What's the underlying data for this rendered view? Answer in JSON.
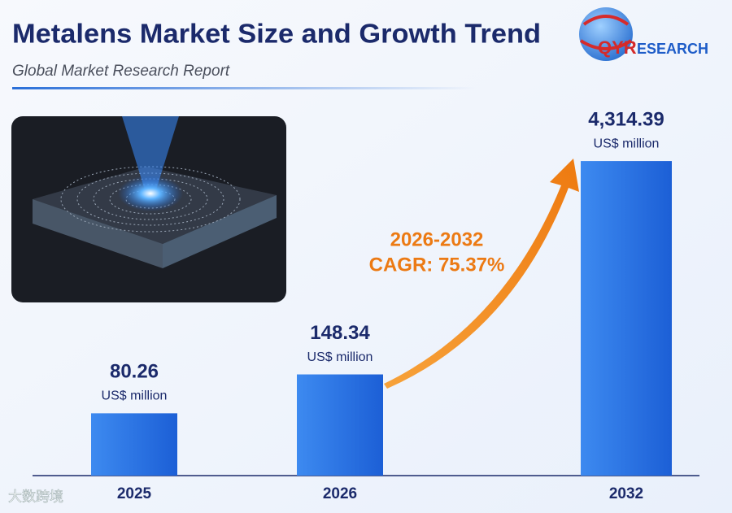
{
  "header": {
    "title": "Metalens Market Size and Growth Trend",
    "subtitle": "Global Market Research Report",
    "logo_mark": "QYR",
    "logo_text": "ESEARCH"
  },
  "chart_data": {
    "type": "bar",
    "categories": [
      "2025",
      "2026",
      "2032"
    ],
    "values": [
      80.26,
      148.34,
      4314.39
    ],
    "value_labels": [
      "80.26",
      "148.34",
      "4,314.39"
    ],
    "unit": "US$ million",
    "color": "#2a74e6",
    "log_scale": true,
    "ylim": [
      30,
      8000
    ],
    "annotation": {
      "period": "2026-2032",
      "cagr": "CAGR: 75.37%"
    }
  },
  "watermark": "大数跨境"
}
